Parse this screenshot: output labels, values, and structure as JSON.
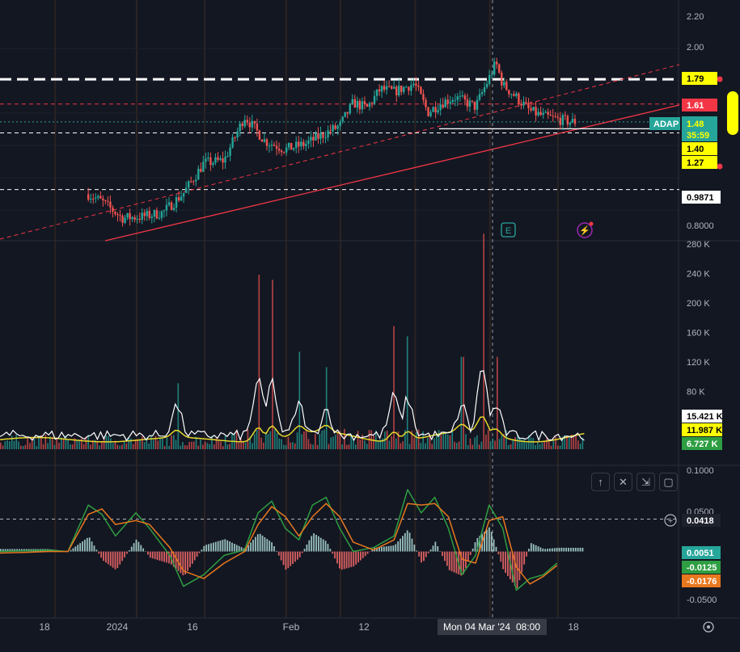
{
  "colors": {
    "background": "#131722",
    "grid": "#1e222d",
    "candle_up": "#26a69a",
    "candle_down": "#ef5350",
    "trend_line": "#f23645",
    "macd_line": "#2e9e42",
    "signal_line": "#e8781e",
    "volume_ma_fast": "#ffffff",
    "volume_ma_slow": "#e6d72a",
    "level_yellow": "#ffff00",
    "level_red": "#f23645"
  },
  "chart_data": [
    {
      "type": "candlestick",
      "x_ticks": [
        "18",
        "2024",
        "16",
        "Feb",
        "12",
        "18"
      ],
      "crosshair_label": "Mon 04 Mar '24",
      "crosshair_time": "08:00",
      "y_ticks": [
        "2.20",
        "2.00",
        "0.8000"
      ],
      "ylim": [
        0.72,
        2.25
      ],
      "symbol_label": "ADAP",
      "price_labels": {
        "level_top": "1.79",
        "level_red": "1.61",
        "last_price": "1.48",
        "countdown": "35:59",
        "level_mid": "1.40",
        "level_low": "1.27",
        "level_base": "0.9871"
      },
      "horizontal_levels": [
        {
          "value": 1.79,
          "style": "dashed-thick",
          "color": "#ffffff"
        },
        {
          "value": 1.61,
          "style": "dashed",
          "color": "#f23645"
        },
        {
          "value": 1.48,
          "style": "dotted",
          "color": "#26a69a"
        },
        {
          "value": 1.4,
          "style": "dashed",
          "color": "#ffffff"
        },
        {
          "value": 0.9871,
          "style": "dashed",
          "color": "#ffffff"
        }
      ],
      "price_path": [
        [
          0.03,
          0.8
        ],
        [
          0.06,
          0.85
        ],
        [
          0.09,
          0.92
        ],
        [
          0.12,
          0.98
        ],
        [
          0.15,
          0.9
        ],
        [
          0.18,
          0.78
        ],
        [
          0.21,
          0.79
        ],
        [
          0.24,
          0.82
        ],
        [
          0.27,
          0.96
        ],
        [
          0.3,
          1.18
        ],
        [
          0.33,
          1.2
        ],
        [
          0.36,
          1.52
        ],
        [
          0.39,
          1.34
        ],
        [
          0.42,
          1.28
        ],
        [
          0.45,
          1.32
        ],
        [
          0.48,
          1.4
        ],
        [
          0.5,
          1.45
        ],
        [
          0.52,
          1.62
        ],
        [
          0.54,
          1.58
        ],
        [
          0.56,
          1.72
        ],
        [
          0.58,
          1.7
        ],
        [
          0.61,
          1.76
        ],
        [
          0.63,
          1.55
        ],
        [
          0.65,
          1.62
        ],
        [
          0.67,
          1.66
        ],
        [
          0.7,
          1.59
        ],
        [
          0.72,
          1.8
        ],
        [
          0.73,
          1.91
        ],
        [
          0.74,
          1.75
        ],
        [
          0.76,
          1.66
        ],
        [
          0.78,
          1.56
        ],
        [
          0.8,
          1.52
        ],
        [
          0.82,
          1.5
        ],
        [
          0.84,
          1.48
        ]
      ]
    },
    {
      "type": "bar",
      "name": "volume",
      "y_ticks": [
        "280 K",
        "240 K",
        "200 K",
        "160 K",
        "120 K",
        "80 K"
      ],
      "ylim": [
        0,
        280000
      ],
      "series_labels": {
        "ma_fast": "15.421 K",
        "ma_slow": "11.987 K",
        "volume": "6.727 K"
      },
      "spikes": [
        [
          0.26,
          90000
        ],
        [
          0.38,
          170000
        ],
        [
          0.4,
          165000
        ],
        [
          0.44,
          95000
        ],
        [
          0.48,
          80000
        ],
        [
          0.58,
          120000
        ],
        [
          0.6,
          110000
        ],
        [
          0.68,
          90000
        ],
        [
          0.71,
          210000
        ],
        [
          0.73,
          90000
        ]
      ]
    },
    {
      "type": "line",
      "name": "macd",
      "y_ticks": [
        "0.1000",
        "0.0500",
        "-0.0500"
      ],
      "ylim": [
        -0.062,
        0.105
      ],
      "hline_value": "0.0418",
      "value_labels": {
        "histogram": "0.0051",
        "macd": "-0.0125",
        "signal": "-0.0176"
      },
      "macd_path": [
        [
          0.0,
          0.0
        ],
        [
          0.04,
          0.001
        ],
        [
          0.07,
          0.002
        ],
        [
          0.1,
          0.0
        ],
        [
          0.13,
          0.06
        ],
        [
          0.15,
          0.048
        ],
        [
          0.17,
          0.02
        ],
        [
          0.2,
          0.05
        ],
        [
          0.22,
          0.03
        ],
        [
          0.25,
          -0.005
        ],
        [
          0.27,
          -0.045
        ],
        [
          0.3,
          -0.03
        ],
        [
          0.33,
          -0.005
        ],
        [
          0.36,
          0.002
        ],
        [
          0.38,
          0.05
        ],
        [
          0.4,
          0.065
        ],
        [
          0.42,
          0.03
        ],
        [
          0.44,
          0.015
        ],
        [
          0.46,
          0.06
        ],
        [
          0.48,
          0.07
        ],
        [
          0.5,
          0.03
        ],
        [
          0.52,
          0.0
        ],
        [
          0.55,
          0.005
        ],
        [
          0.58,
          0.02
        ],
        [
          0.6,
          0.08
        ],
        [
          0.62,
          0.05
        ],
        [
          0.64,
          0.07
        ],
        [
          0.66,
          0.03
        ],
        [
          0.68,
          -0.03
        ],
        [
          0.7,
          -0.005
        ],
        [
          0.72,
          0.06
        ],
        [
          0.74,
          0.03
        ],
        [
          0.76,
          -0.05
        ],
        [
          0.78,
          -0.035
        ],
        [
          0.8,
          -0.03
        ],
        [
          0.82,
          -0.015
        ]
      ],
      "signal_path": [
        [
          0.0,
          -0.002
        ],
        [
          0.04,
          -0.001
        ],
        [
          0.07,
          0.0
        ],
        [
          0.1,
          0.0
        ],
        [
          0.13,
          0.048
        ],
        [
          0.15,
          0.055
        ],
        [
          0.17,
          0.035
        ],
        [
          0.2,
          0.04
        ],
        [
          0.22,
          0.035
        ],
        [
          0.25,
          0.005
        ],
        [
          0.27,
          -0.025
        ],
        [
          0.3,
          -0.035
        ],
        [
          0.33,
          -0.015
        ],
        [
          0.36,
          0.0
        ],
        [
          0.38,
          0.035
        ],
        [
          0.4,
          0.058
        ],
        [
          0.42,
          0.045
        ],
        [
          0.44,
          0.02
        ],
        [
          0.46,
          0.045
        ],
        [
          0.48,
          0.062
        ],
        [
          0.5,
          0.045
        ],
        [
          0.52,
          0.012
        ],
        [
          0.55,
          0.002
        ],
        [
          0.58,
          0.015
        ],
        [
          0.6,
          0.062
        ],
        [
          0.62,
          0.06
        ],
        [
          0.64,
          0.062
        ],
        [
          0.66,
          0.045
        ],
        [
          0.68,
          -0.01
        ],
        [
          0.7,
          -0.015
        ],
        [
          0.72,
          0.04
        ],
        [
          0.74,
          0.045
        ],
        [
          0.76,
          -0.02
        ],
        [
          0.78,
          -0.042
        ],
        [
          0.8,
          -0.032
        ],
        [
          0.82,
          -0.018
        ]
      ]
    }
  ]
}
